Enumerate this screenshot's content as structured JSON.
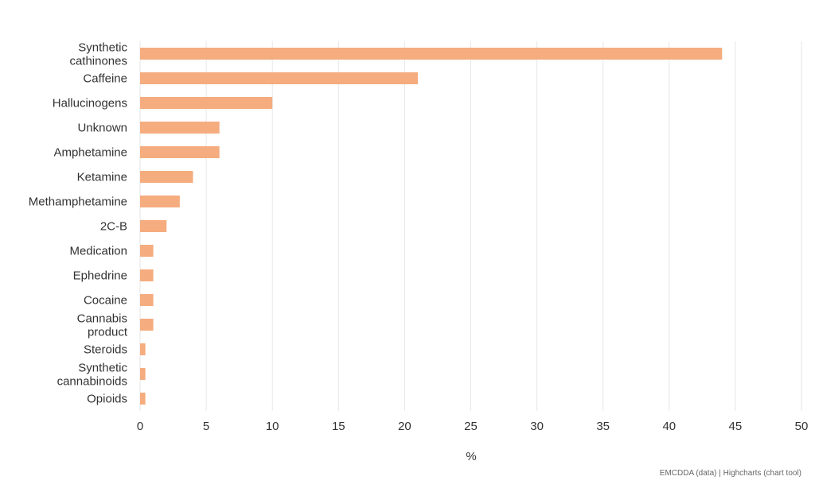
{
  "colors": {
    "bar": "#f5ac7e",
    "grid": "#e6e6e6",
    "text": "#333333"
  },
  "credits": "EMCDDA (data) | Highcharts (chart tool)",
  "chart_data": {
    "type": "bar",
    "orientation": "horizontal",
    "categories": [
      "Synthetic cathinones",
      "Caffeine",
      "Hallucinogens",
      "Unknown",
      "Amphetamine",
      "Ketamine",
      "Methamphetamine",
      "2C-B",
      "Medication",
      "Ephedrine",
      "Cocaine",
      "Cannabis product",
      "Steroids",
      "Synthetic cannabinoids",
      "Opioids"
    ],
    "values": [
      44,
      21,
      10,
      6,
      6,
      4,
      3,
      2,
      1,
      1,
      1,
      1,
      0.4,
      0.4,
      0.4
    ],
    "xlabel": "%",
    "xlim": [
      0,
      50
    ],
    "xticks": [
      "0",
      "5",
      "10",
      "15",
      "20",
      "25",
      "30",
      "35",
      "40",
      "45",
      "50"
    ],
    "grid": true,
    "legend": "none"
  }
}
